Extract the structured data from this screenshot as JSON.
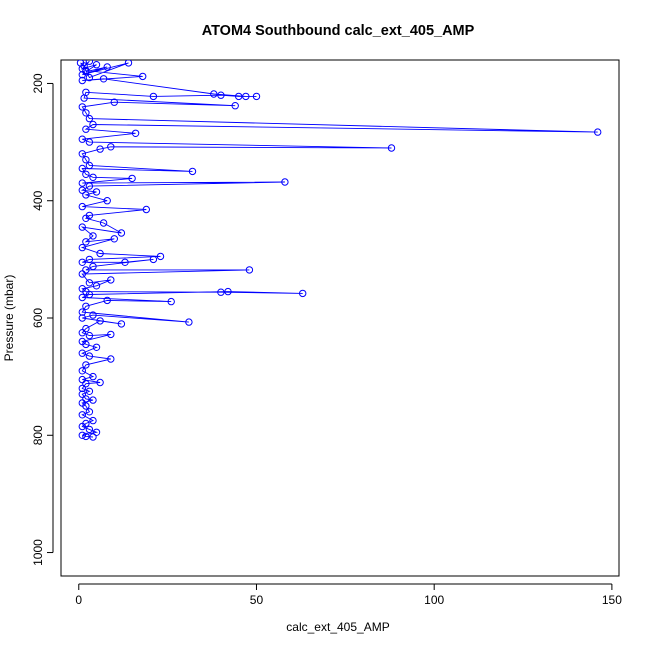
{
  "chart_data": {
    "type": "scatter",
    "title": "ATOM4 Southbound calc_ext_405_AMP",
    "xlabel": "calc_ext_405_AMP",
    "ylabel": "Pressure (mbar)",
    "xlim": [
      -5,
      152
    ],
    "ylim": [
      1040,
      160
    ],
    "x_ticks": [
      0,
      50,
      100,
      150
    ],
    "y_ticks": [
      200,
      400,
      600,
      800,
      1000
    ],
    "y_reversed": true,
    "grid": false,
    "legend": "none",
    "marker": "open-circle",
    "connected": true,
    "color": "#0000ff",
    "x": [
      0.5,
      1.5,
      3.0,
      1.0,
      5.0,
      2.0,
      8.0,
      1.0,
      14.0,
      3.0,
      2.0,
      18.0,
      1.0,
      7.0,
      38.0,
      47.0,
      50.0,
      45.0,
      40.0,
      21.0,
      2.0,
      1.5,
      44.0,
      10.0,
      1.0,
      2.0,
      3.0,
      146.0,
      4.0,
      2.0,
      16.0,
      1.0,
      3.0,
      88.0,
      9.0,
      6.0,
      1.0,
      2.0,
      3.0,
      32.0,
      1.0,
      2.0,
      4.0,
      15.0,
      1.0,
      58.0,
      3.0,
      1.0,
      5.0,
      2.0,
      8.0,
      1.0,
      19.0,
      3.0,
      2.0,
      7.0,
      12.0,
      1.0,
      4.0,
      2.0,
      10.0,
      1.0,
      6.0,
      23.0,
      3.0,
      1.0,
      13.0,
      21.0,
      4.0,
      2.0,
      48.0,
      1.0,
      3.0,
      9.0,
      5.0,
      1.0,
      2.0,
      40.0,
      63.0,
      42.0,
      3.0,
      1.0,
      26.0,
      8.0,
      2.0,
      1.0,
      31.0,
      4.0,
      1.0,
      12.0,
      6.0,
      2.0,
      1.0,
      3.0,
      9.0,
      1.0,
      2.0,
      5.0,
      1.0,
      3.0,
      9.0,
      2.0,
      1.0,
      4.0,
      1.0,
      6.0,
      2.0,
      1.0,
      3.0,
      1.0,
      2.0,
      4.0,
      1.0,
      2.0,
      3.0,
      1.0,
      4.0,
      2.0,
      1.0,
      3.0,
      5.0,
      1.0,
      2.0,
      4.0
    ],
    "y": [
      165,
      170,
      162,
      175,
      168,
      180,
      172,
      185,
      165,
      190,
      178,
      188,
      195,
      192,
      218,
      222,
      222,
      222,
      220,
      222,
      215,
      225,
      238,
      232,
      240,
      250,
      260,
      283,
      270,
      278,
      285,
      295,
      300,
      310,
      308,
      312,
      320,
      330,
      340,
      350,
      345,
      355,
      360,
      362,
      370,
      368,
      375,
      382,
      385,
      390,
      400,
      410,
      415,
      425,
      430,
      438,
      455,
      445,
      460,
      470,
      465,
      480,
      490,
      495,
      500,
      505,
      505,
      500,
      512,
      518,
      518,
      525,
      540,
      535,
      545,
      550,
      555,
      556,
      558,
      555,
      560,
      565,
      572,
      570,
      580,
      590,
      607,
      595,
      600,
      610,
      605,
      618,
      625,
      630,
      628,
      640,
      645,
      650,
      660,
      665,
      670,
      680,
      690,
      700,
      705,
      710,
      712,
      720,
      725,
      730,
      738,
      740,
      745,
      750,
      760,
      765,
      775,
      780,
      785,
      790,
      795,
      800,
      802,
      803
    ]
  }
}
